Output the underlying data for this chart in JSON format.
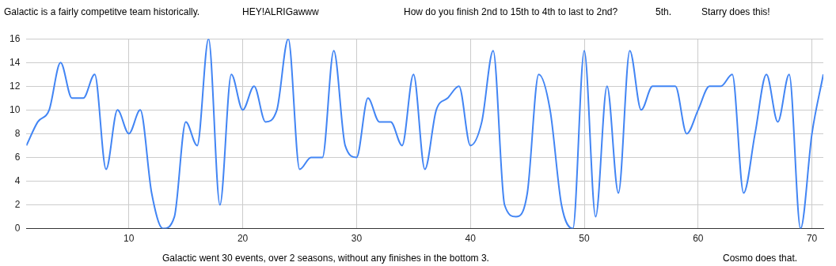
{
  "chart_data": {
    "type": "line",
    "x": [
      1,
      2,
      3,
      4,
      5,
      6,
      7,
      8,
      9,
      10,
      11,
      12,
      13,
      14,
      15,
      16,
      17,
      18,
      19,
      20,
      21,
      22,
      23,
      24,
      25,
      26,
      27,
      28,
      29,
      30,
      31,
      32,
      33,
      34,
      35,
      36,
      37,
      38,
      39,
      40,
      41,
      42,
      43,
      44,
      45,
      46,
      47,
      48,
      49,
      50,
      51,
      52,
      53,
      54,
      55,
      56,
      57,
      58,
      59,
      60,
      61,
      62,
      63,
      64,
      65,
      66,
      67,
      68,
      69,
      70,
      71
    ],
    "series": [
      {
        "color": "#4285f4",
        "values": [
          7,
          9,
          10,
          14,
          11,
          11,
          13,
          5,
          10,
          8,
          10,
          3,
          0,
          1,
          9,
          7,
          16,
          2,
          13,
          10,
          12,
          9,
          10,
          16,
          5,
          6,
          6,
          15,
          7,
          6,
          11,
          9,
          9,
          7,
          13,
          5,
          10,
          11,
          12,
          7,
          9,
          15,
          2,
          1,
          3,
          13,
          10,
          2,
          0,
          15,
          1,
          12,
          3,
          15,
          10,
          12,
          12,
          12,
          8,
          10,
          12,
          12,
          13,
          3,
          8,
          13,
          9,
          13,
          0,
          8,
          13
        ]
      }
    ],
    "xlim": [
      1,
      71
    ],
    "xticks": [
      10,
      20,
      30,
      40,
      50,
      60,
      70
    ],
    "ylim": [
      0,
      16
    ],
    "yticks": [
      0,
      2,
      4,
      6,
      8,
      10,
      12,
      14,
      16
    ],
    "grid": true,
    "legend": false,
    "marker": "none",
    "line_style": "solid",
    "annotations": [
      "Galactic is a fairly competitve team historically.",
      "HEY!ALRIGawww",
      "How do you finish 2nd to 15th to 4th to last to 2nd?",
      "5th.",
      "Starry does this!",
      "Galactic went 30 events, over 2 seasons, without any finishes in the bottom 3.",
      "Cosmo does that."
    ]
  }
}
